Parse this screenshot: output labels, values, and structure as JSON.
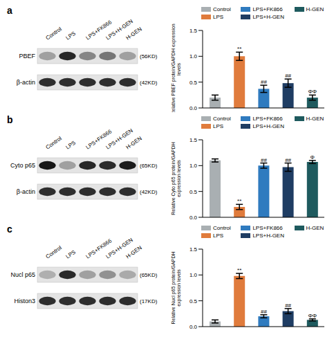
{
  "chart_data": [
    {
      "type": "bar",
      "y_label": "Relative PBEF protein/GAPDH expression levels",
      "categories": [
        "Control",
        "LPS",
        "LPS+FK866",
        "LPS+H-GEN",
        "H-GEN"
      ],
      "values": [
        0.2,
        1.0,
        0.37,
        0.48,
        0.2
      ],
      "errors": [
        0.05,
        0.08,
        0.07,
        0.08,
        0.05
      ],
      "colors": [
        "#a9afb2",
        "#e07b3c",
        "#2f7bbf",
        "#1f3d63",
        "#1e5a5e"
      ],
      "ylim": [
        0,
        1.5
      ],
      "yticks": [
        {
          "value": 0,
          "label": "0.0"
        },
        0.5,
        {
          "value": 1,
          "label": "1.0"
        },
        1.5
      ],
      "annotations": [
        {
          "category": "LPS",
          "text": "**"
        },
        {
          "category": "LPS+FK866",
          "text": "##"
        },
        {
          "category": "LPS+H-GEN",
          "text": "##"
        },
        {
          "category": "H-GEN",
          "text": "ΦΦ"
        }
      ],
      "legend": "top",
      "tick_labels": "y",
      "grid": false
    },
    {
      "type": "bar",
      "y_label": "Relative Cyto p65 protein/GAPDH expression levels",
      "categories": [
        "Control",
        "LPS",
        "LPS+FK866",
        "LPS+H-GEN",
        "H-GEN"
      ],
      "values": [
        1.1,
        0.2,
        1.0,
        0.97,
        1.07
      ],
      "errors": [
        0.03,
        0.05,
        0.05,
        0.08,
        0.03
      ],
      "colors": [
        "#a9afb2",
        "#e07b3c",
        "#2f7bbf",
        "#1f3d63",
        "#1e5a5e"
      ],
      "ylim": [
        0,
        1.5
      ],
      "yticks": [
        {
          "value": 0,
          "label": "0.0"
        },
        0.5,
        {
          "value": 1,
          "label": "1.0"
        },
        1.5
      ],
      "annotations": [
        {
          "category": "LPS",
          "text": "**"
        },
        {
          "category": "LPS+FK866",
          "text": "##"
        },
        {
          "category": "LPS+H-GEN",
          "text": "##"
        },
        {
          "category": "H-GEN",
          "text": "Φ"
        }
      ],
      "legend": "top",
      "tick_labels": "y",
      "grid": false
    },
    {
      "type": "bar",
      "y_label": "Relative Nucl p65 protein/GAPDH expression levels",
      "categories": [
        "Control",
        "LPS",
        "LPS+FK866",
        "LPS+H-GEN",
        "H-GEN"
      ],
      "values": [
        0.1,
        0.98,
        0.2,
        0.3,
        0.13
      ],
      "errors": [
        0.03,
        0.05,
        0.03,
        0.05,
        0.02
      ],
      "colors": [
        "#a9afb2",
        "#e07b3c",
        "#2f7bbf",
        "#1f3d63",
        "#1e5a5e"
      ],
      "ylim": [
        0,
        1.5
      ],
      "yticks": [
        {
          "value": 0,
          "label": "0.0"
        },
        0.5,
        {
          "value": 1,
          "label": "1.0"
        },
        1.5
      ],
      "annotations": [
        {
          "category": "LPS",
          "text": "**"
        },
        {
          "category": "LPS+FK866",
          "text": "##"
        },
        {
          "category": "LPS+H-GEN",
          "text": "##"
        },
        {
          "category": "H-GEN",
          "text": "ΦΦ"
        }
      ],
      "legend": "top",
      "tick_labels": "y",
      "grid": false
    }
  ],
  "blots": [
    {
      "panel": "a",
      "lanes": [
        "Control",
        "LPS",
        "LPS+FK866",
        "LPS+H-GEN",
        "H-GEN"
      ],
      "rows": [
        {
          "protein": "PBEF",
          "size": "(56KD)"
        },
        {
          "protein": "β-actin",
          "size": "(42KD)"
        }
      ]
    },
    {
      "panel": "b",
      "lanes": [
        "Control",
        "LPS",
        "LPS+FK866",
        "LPS+H-GEN",
        "H-GEN"
      ],
      "rows": [
        {
          "protein": "Cyto p65",
          "size": "(65KD)"
        },
        {
          "protein": "β-actin",
          "size": "(42KD)"
        }
      ]
    },
    {
      "panel": "c",
      "lanes": [
        "Control",
        "LPS",
        "LPS+FK866",
        "LPS+H-GEN",
        "H-GEN"
      ],
      "rows": [
        {
          "protein": "Nucl p65",
          "size": "(65KD)"
        },
        {
          "protein": "Histon3",
          "size": "(17KD)"
        }
      ]
    }
  ]
}
